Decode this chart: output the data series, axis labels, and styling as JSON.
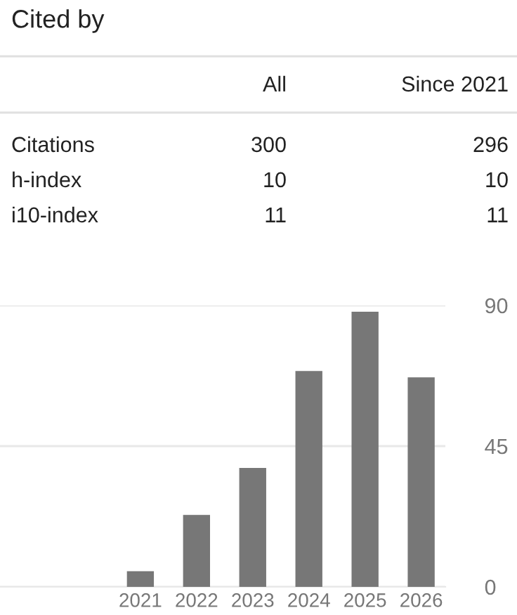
{
  "chart_data": [
    {
      "type": "other",
      "title": "Cited by",
      "annotations": [
        "All",
        "Since 2021",
        "Citations",
        "300",
        "296",
        "h-index",
        "10",
        "10",
        "i10-index",
        "11",
        "11"
      ]
    },
    {
      "type": "bar",
      "categories": [
        "2021",
        "2022",
        "2023",
        "2024",
        "2025",
        "2026"
      ],
      "values": [
        5,
        23,
        38,
        69,
        88,
        67
      ],
      "color": "#777777",
      "ylim": [
        0,
        90
      ],
      "yticks": [
        0,
        45,
        90
      ],
      "grid": "y"
    }
  ]
}
